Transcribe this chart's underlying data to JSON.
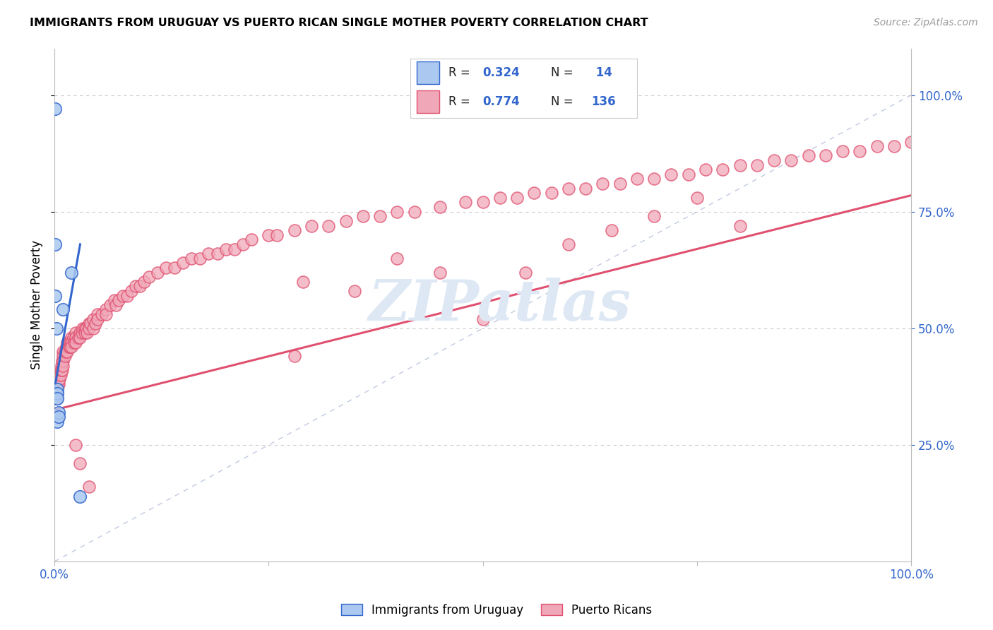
{
  "title": "IMMIGRANTS FROM URUGUAY VS PUERTO RICAN SINGLE MOTHER POVERTY CORRELATION CHART",
  "source": "Source: ZipAtlas.com",
  "ylabel": "Single Mother Poverty",
  "legend_label1": "Immigrants from Uruguay",
  "legend_label2": "Puerto Ricans",
  "color_uruguay": "#aac8f0",
  "color_puertorico": "#f0a8b8",
  "color_line_uruguay": "#3366cc",
  "color_line_puertorico": "#e05070",
  "color_diagonal": "#b0bcd8",
  "watermark": "ZIPatlas",
  "uruguay_x": [
    0.001,
    0.001,
    0.001,
    0.002,
    0.002,
    0.003,
    0.003,
    0.003,
    0.003,
    0.005,
    0.005,
    0.01,
    0.02,
    0.03
  ],
  "uruguay_y": [
    0.97,
    0.68,
    0.57,
    0.5,
    0.35,
    0.37,
    0.36,
    0.35,
    0.3,
    0.32,
    0.31,
    0.54,
    0.62,
    0.14
  ],
  "puertorico_x": [
    0.002,
    0.002,
    0.003,
    0.003,
    0.004,
    0.004,
    0.005,
    0.005,
    0.005,
    0.006,
    0.006,
    0.007,
    0.007,
    0.008,
    0.008,
    0.009,
    0.009,
    0.01,
    0.01,
    0.01,
    0.01,
    0.012,
    0.012,
    0.013,
    0.014,
    0.015,
    0.015,
    0.015,
    0.016,
    0.017,
    0.018,
    0.018,
    0.02,
    0.02,
    0.02,
    0.022,
    0.023,
    0.025,
    0.025,
    0.025,
    0.028,
    0.03,
    0.03,
    0.032,
    0.033,
    0.035,
    0.035,
    0.037,
    0.038,
    0.04,
    0.04,
    0.042,
    0.045,
    0.045,
    0.048,
    0.05,
    0.05,
    0.055,
    0.06,
    0.06,
    0.065,
    0.07,
    0.072,
    0.075,
    0.08,
    0.085,
    0.09,
    0.095,
    0.1,
    0.105,
    0.11,
    0.12,
    0.13,
    0.14,
    0.15,
    0.16,
    0.17,
    0.18,
    0.19,
    0.2,
    0.21,
    0.22,
    0.23,
    0.25,
    0.26,
    0.28,
    0.3,
    0.32,
    0.34,
    0.36,
    0.38,
    0.4,
    0.42,
    0.45,
    0.48,
    0.5,
    0.52,
    0.54,
    0.56,
    0.58,
    0.6,
    0.62,
    0.64,
    0.66,
    0.68,
    0.7,
    0.72,
    0.74,
    0.76,
    0.78,
    0.8,
    0.82,
    0.84,
    0.86,
    0.88,
    0.9,
    0.92,
    0.94,
    0.96,
    0.98,
    1.0,
    0.75,
    0.8,
    0.5,
    0.35,
    0.29,
    0.4,
    0.45,
    0.6,
    0.65,
    0.7,
    0.55,
    0.04,
    0.03,
    0.025,
    0.28
  ],
  "puertorico_y": [
    0.37,
    0.35,
    0.38,
    0.36,
    0.39,
    0.38,
    0.4,
    0.39,
    0.38,
    0.4,
    0.39,
    0.41,
    0.4,
    0.42,
    0.41,
    0.43,
    0.41,
    0.45,
    0.44,
    0.43,
    0.42,
    0.45,
    0.44,
    0.45,
    0.46,
    0.47,
    0.46,
    0.45,
    0.47,
    0.46,
    0.47,
    0.46,
    0.48,
    0.47,
    0.46,
    0.48,
    0.47,
    0.49,
    0.48,
    0.47,
    0.48,
    0.49,
    0.48,
    0.49,
    0.5,
    0.5,
    0.49,
    0.5,
    0.49,
    0.51,
    0.5,
    0.51,
    0.52,
    0.5,
    0.51,
    0.53,
    0.52,
    0.53,
    0.54,
    0.53,
    0.55,
    0.56,
    0.55,
    0.56,
    0.57,
    0.57,
    0.58,
    0.59,
    0.59,
    0.6,
    0.61,
    0.62,
    0.63,
    0.63,
    0.64,
    0.65,
    0.65,
    0.66,
    0.66,
    0.67,
    0.67,
    0.68,
    0.69,
    0.7,
    0.7,
    0.71,
    0.72,
    0.72,
    0.73,
    0.74,
    0.74,
    0.75,
    0.75,
    0.76,
    0.77,
    0.77,
    0.78,
    0.78,
    0.79,
    0.79,
    0.8,
    0.8,
    0.81,
    0.81,
    0.82,
    0.82,
    0.83,
    0.83,
    0.84,
    0.84,
    0.85,
    0.85,
    0.86,
    0.86,
    0.87,
    0.87,
    0.88,
    0.88,
    0.89,
    0.89,
    0.9,
    0.78,
    0.72,
    0.52,
    0.58,
    0.6,
    0.65,
    0.62,
    0.68,
    0.71,
    0.74,
    0.62,
    0.16,
    0.21,
    0.25,
    0.44
  ],
  "xlim": [
    0,
    1.0
  ],
  "ylim": [
    0,
    1.1
  ],
  "xticks": [
    0,
    0.25,
    0.5,
    0.75,
    1.0
  ],
  "xticklabels": [
    "0.0%",
    "",
    "",
    "",
    "100.0%"
  ],
  "yticks": [
    0.25,
    0.5,
    0.75,
    1.0
  ],
  "yticklabels": [
    "25.0%",
    "50.0%",
    "75.0%",
    "100.0%"
  ]
}
